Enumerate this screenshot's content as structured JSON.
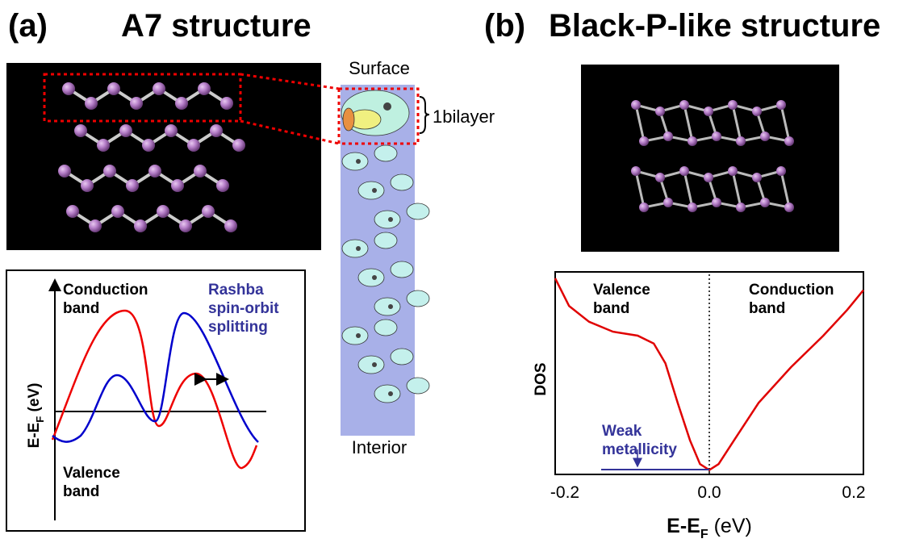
{
  "panel_a": {
    "label": "(a)",
    "title": "A7 structure",
    "surface_label": "Surface",
    "bilayer_label": "1bilayer",
    "interior_label": "Interior",
    "band_diagram": {
      "conduction_label": [
        "Conduction",
        "band"
      ],
      "valence_label": [
        "Valence",
        "band"
      ],
      "rashba_label": [
        "Rashba",
        "spin-orbit",
        "splitting"
      ],
      "y_label": {
        "main": "E-E",
        "sub": "F",
        "unit": " (eV)"
      }
    }
  },
  "panel_b": {
    "label": "(b)",
    "title": "Black-P-like structure"
  },
  "chart_data": {
    "type": "line",
    "color": "#e00000",
    "x": [
      -0.2,
      -0.182,
      -0.156,
      -0.125,
      -0.093,
      -0.072,
      -0.057,
      -0.041,
      -0.025,
      -0.012,
      0,
      0.012,
      0.032,
      0.064,
      0.106,
      0.148,
      0.179,
      0.2
    ],
    "values": [
      0.98,
      0.84,
      0.76,
      0.71,
      0.69,
      0.65,
      0.55,
      0.35,
      0.16,
      0.04,
      0.01,
      0.04,
      0.16,
      0.35,
      0.53,
      0.69,
      0.82,
      0.92
    ],
    "xlim": [
      -0.2,
      0.2
    ],
    "xticks": [
      -0.2,
      {
        "value": 0,
        "label": "0.0"
      },
      0.2
    ],
    "ylim": [
      0,
      1
    ],
    "x_label": {
      "main": "E-E",
      "sub": "F",
      "unit": " (eV)"
    },
    "y_label": "DOS",
    "annotations": {
      "valence": [
        "Valence",
        "band"
      ],
      "conduction": [
        "Conduction",
        "band"
      ],
      "weak": [
        "Weak",
        "metallicity"
      ]
    }
  }
}
